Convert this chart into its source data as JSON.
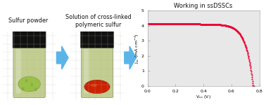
{
  "title": "Working in ssDSSCs",
  "xlabel": "V$_{oc}$ (V)",
  "ylabel": "J$_{sc}$ (mA cm$^{-2}$)",
  "xlim": [
    0.0,
    0.8
  ],
  "ylim": [
    0.0,
    5.0
  ],
  "xticks": [
    0.0,
    0.2,
    0.4,
    0.6,
    0.8
  ],
  "yticks": [
    0,
    1,
    2,
    3,
    4,
    5
  ],
  "curve_color": "#ee0033",
  "jsc": 4.1,
  "voc": 0.755,
  "left_label": "Sulfur powder",
  "right_label": "Solution of cross-linked\npolymeric sulfur",
  "bg_color": "#ffffff",
  "plot_bg": "#e8e8e8",
  "arrow_color": "#5ab4e8",
  "photo_bg": "#c8cdb8",
  "vial_body_color1": "#c0cc88",
  "vial_body_color2": "#b8c480",
  "vial_cap_color": "#111111",
  "powder_color": "#99c044",
  "solution_color": "#cc2200",
  "grid_bg": "#d0d0d0"
}
